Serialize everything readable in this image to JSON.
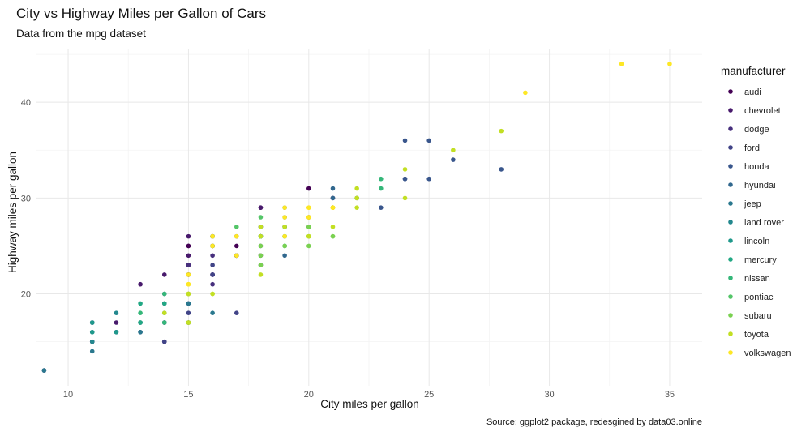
{
  "chart_data": {
    "type": "scatter",
    "title": "City vs Highway Miles per Gallon of Cars",
    "subtitle": "Data from the mpg dataset",
    "xlabel": "City miles per gallon",
    "ylabel": "Highway miles per gallon",
    "caption": "Source: ggplot2 package, redesgined by data03.online",
    "xlim": [
      8.65,
      36.35
    ],
    "ylim": [
      10.4,
      45.6
    ],
    "xticks": [
      10,
      15,
      20,
      25,
      30,
      35
    ],
    "yticks": [
      20,
      30,
      40
    ],
    "grid": true,
    "legend": {
      "title": "manufacturer",
      "position": "right"
    },
    "series": [
      {
        "name": "audi",
        "color": "#440154",
        "x": [
          18,
          21,
          20,
          21,
          16,
          18,
          18,
          18,
          16,
          20,
          19,
          15,
          17,
          16,
          15,
          17,
          16,
          15
        ],
        "y": [
          29,
          29,
          31,
          30,
          26,
          26,
          27,
          26,
          25,
          28,
          27,
          25,
          25,
          25,
          25,
          24,
          25,
          23
        ]
      },
      {
        "name": "chevrolet",
        "color": "#481A6C",
        "x": [
          15,
          14,
          11,
          14,
          12,
          15,
          15,
          16,
          16,
          19,
          22,
          18,
          18,
          17,
          18,
          17,
          16,
          16,
          17,
          15,
          15,
          14,
          13
        ],
        "y": [
          20,
          15,
          15,
          17,
          17,
          26,
          23,
          26,
          25,
          27,
          30,
          26,
          29,
          26,
          24,
          24,
          22,
          22,
          24,
          24,
          17,
          22,
          21
        ]
      },
      {
        "name": "dodge",
        "color": "#472F7D",
        "x": [
          15,
          16,
          16,
          17,
          17,
          18,
          15,
          15,
          16,
          13,
          14,
          11,
          9,
          11,
          12
        ],
        "y": [
          22,
          22,
          21,
          24,
          24,
          23,
          22,
          23,
          24,
          17,
          19,
          17,
          12,
          15,
          16
        ]
      },
      {
        "name": "ford",
        "color": "#414487",
        "x": [
          13,
          15,
          14,
          14,
          11,
          17,
          16,
          16,
          18,
          16,
          15,
          15,
          14,
          17,
          15
        ],
        "y": [
          16,
          17,
          15,
          17,
          17,
          24,
          22,
          26,
          25,
          23,
          19,
          18,
          20,
          18,
          19
        ]
      },
      {
        "name": "honda",
        "color": "#39568C",
        "x": [
          28,
          24,
          25,
          23,
          24,
          26,
          25,
          24,
          21
        ],
        "y": [
          33,
          32,
          32,
          29,
          32,
          34,
          36,
          36,
          29
        ]
      },
      {
        "name": "hyundai",
        "color": "#31688E",
        "x": [
          18,
          18,
          21,
          21,
          18,
          18,
          19,
          19,
          19,
          20,
          20,
          19
        ],
        "y": [
          26,
          27,
          30,
          31,
          26,
          26,
          28,
          26,
          29,
          28,
          27,
          24
        ]
      },
      {
        "name": "jeep",
        "color": "#2A788E",
        "x": [
          14,
          11,
          15,
          14,
          9,
          13,
          16
        ],
        "y": [
          17,
          14,
          19,
          18,
          12,
          16,
          18
        ]
      },
      {
        "name": "land rover",
        "color": "#23888E",
        "x": [
          11,
          12,
          11,
          11
        ],
        "y": [
          15,
          18,
          16,
          17
        ]
      },
      {
        "name": "lincoln",
        "color": "#1F988B",
        "x": [
          11,
          12,
          11
        ],
        "y": [
          17,
          16,
          16
        ]
      },
      {
        "name": "mercury",
        "color": "#22A884",
        "x": [
          14,
          13,
          13,
          13
        ],
        "y": [
          19,
          19,
          17,
          17
        ]
      },
      {
        "name": "nissan",
        "color": "#35B779",
        "x": [
          21,
          19,
          23,
          23,
          19,
          19,
          18,
          19,
          19,
          14,
          15,
          14,
          13
        ],
        "y": [
          29,
          27,
          31,
          32,
          27,
          26,
          26,
          25,
          25,
          17,
          17,
          20,
          18
        ]
      },
      {
        "name": "pontiac",
        "color": "#54C568",
        "x": [
          18,
          16,
          17,
          18,
          16
        ],
        "y": [
          26,
          26,
          27,
          28,
          25
        ]
      },
      {
        "name": "subaru",
        "color": "#7AD151",
        "x": [
          18,
          19,
          20,
          20,
          18,
          18,
          21,
          21,
          20,
          19,
          20,
          22
        ],
        "y": [
          25,
          26,
          25,
          26,
          23,
          24,
          26,
          26,
          27,
          25,
          26,
          30
        ]
      },
      {
        "name": "toyota",
        "color": "#C2DF23",
        "x": [
          15,
          16,
          18,
          18,
          18,
          15,
          15,
          16,
          15,
          15,
          14,
          21,
          22,
          19,
          21,
          24,
          22,
          26,
          28,
          24,
          22,
          20,
          20,
          16
        ],
        "y": [
          20,
          20,
          22,
          27,
          26,
          20,
          20,
          20,
          17,
          17,
          18,
          29,
          29,
          27,
          27,
          33,
          30,
          35,
          37,
          30,
          31,
          26,
          26,
          25
        ]
      },
      {
        "name": "volkswagen",
        "color": "#FDE725",
        "x": [
          21,
          20,
          20,
          19,
          17,
          33,
          21,
          21,
          29,
          20,
          20,
          35,
          20,
          21,
          21,
          21,
          19,
          15,
          17,
          19,
          16,
          15,
          16,
          15
        ],
        "y": [
          29,
          28,
          29,
          29,
          26,
          44,
          29,
          29,
          41,
          29,
          28,
          44,
          28,
          29,
          29,
          29,
          28,
          21,
          24,
          26,
          26,
          21,
          25,
          22
        ]
      }
    ]
  }
}
